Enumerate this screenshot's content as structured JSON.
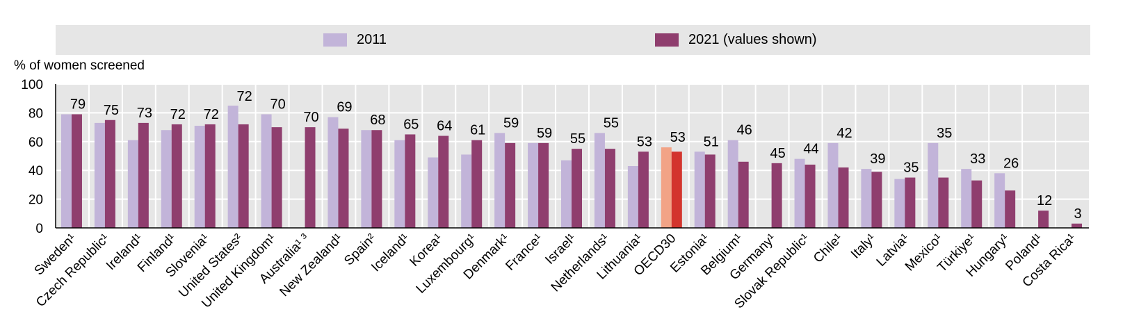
{
  "legend": {
    "items": [
      {
        "label": "2011",
        "color": "#c2b4d9"
      },
      {
        "label": "2021 (values shown)",
        "color": "#8f3e6e"
      }
    ]
  },
  "colors": {
    "bar_2011": "#c2b4d9",
    "bar_2021": "#8f3e6e",
    "oecd_2011": "#f2a386",
    "oecd_2021": "#d3342d",
    "plot_background": "#e6e6e6",
    "grid": "#ffffff"
  },
  "chart_data": {
    "type": "bar",
    "ylabel": "% of women screened",
    "ylim": [
      0,
      100
    ],
    "yticks": [
      0,
      20,
      40,
      60,
      80,
      100
    ],
    "grid": true,
    "legend_position": "top",
    "categories": [
      "Sweden¹",
      "Czech Republic¹",
      "Ireland¹",
      "Finland¹",
      "Slovenia¹",
      "United States²",
      "United Kingdom¹",
      "Australia¹ ³",
      "New Zealand¹",
      "Spain²",
      "Iceland¹",
      "Korea¹",
      "Luxembourg¹",
      "Denmark¹",
      "France¹",
      "Israel¹",
      "Netherlands¹",
      "Lithuania¹",
      "OECD30",
      "Estonia¹",
      "Belgium¹",
      "Germany¹",
      "Slovak Republic¹",
      "Chile¹",
      "Italy¹",
      "Latvia¹",
      "Mexico¹",
      "Türkiye¹",
      "Hungary¹",
      "Poland¹",
      "Costa Rica¹"
    ],
    "highlight_category": "OECD30",
    "series": [
      {
        "name": "2011",
        "values": [
          79,
          73,
          61,
          68,
          71,
          85,
          79,
          null,
          77,
          68,
          61,
          49,
          51,
          66,
          59,
          47,
          66,
          43,
          56,
          53,
          61,
          null,
          48,
          59,
          41,
          34,
          59,
          41,
          38,
          null,
          null
        ]
      },
      {
        "name": "2021 (values shown)",
        "values": [
          79,
          75,
          73,
          72,
          72,
          72,
          70,
          70,
          69,
          68,
          65,
          64,
          61,
          59,
          59,
          55,
          55,
          53,
          53,
          51,
          46,
          45,
          44,
          42,
          39,
          35,
          35,
          33,
          26,
          12,
          3
        ]
      }
    ],
    "data_labels": [
      "79",
      "75",
      "73",
      "72",
      "72",
      "72",
      "70",
      "70",
      "69",
      "68",
      "65",
      "64",
      "61",
      "59",
      "59",
      "55",
      "55",
      "53",
      "53",
      "51",
      "46",
      "45",
      "44",
      "42",
      "39",
      "35",
      "35",
      "33",
      "26",
      "12",
      "3"
    ]
  }
}
